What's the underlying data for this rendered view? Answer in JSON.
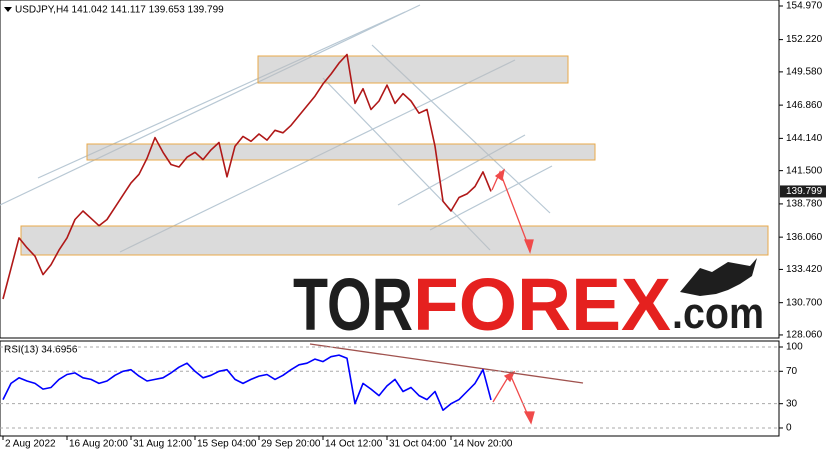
{
  "logo": {
    "tor": "TOR",
    "forex": "FOREX",
    "com": ".com"
  },
  "chart_data": [
    {
      "type": "line",
      "title": "USDJPY,H4  141.042 141.117 139.653 139.799",
      "color": "#b01818",
      "x": [
        0,
        1,
        2,
        3,
        4,
        5,
        6,
        7,
        8,
        9,
        10,
        11,
        12,
        13,
        14,
        15,
        16,
        17,
        18,
        19,
        20,
        21,
        22,
        23,
        24,
        25,
        26,
        27,
        28,
        29,
        30,
        31,
        32,
        33,
        34,
        35,
        36,
        37,
        38,
        39,
        40,
        41,
        42,
        43,
        44,
        45,
        46,
        47,
        48,
        49,
        50,
        51,
        52,
        53,
        54,
        55,
        56,
        57,
        58,
        59,
        60,
        61
      ],
      "values": [
        131.0,
        133.5,
        136.0,
        135.2,
        134.5,
        133.0,
        133.8,
        135.0,
        136.0,
        137.5,
        138.2,
        137.6,
        137.0,
        137.5,
        138.5,
        139.5,
        140.5,
        141.2,
        142.5,
        144.2,
        143.0,
        142.0,
        141.8,
        142.6,
        143.0,
        142.4,
        143.2,
        143.8,
        141.0,
        143.5,
        144.3,
        143.9,
        144.5,
        144.0,
        144.8,
        144.6,
        145.2,
        146.0,
        146.8,
        147.6,
        148.6,
        149.4,
        150.3,
        151.0,
        147.0,
        148.2,
        146.5,
        147.2,
        148.5,
        147.0,
        147.8,
        147.2,
        146.2,
        146.5,
        143.5,
        139.0,
        138.2,
        139.3,
        139.6,
        140.2,
        141.4,
        139.799
      ],
      "current_price": 139.799,
      "xlim": [
        -0.375,
        97
      ],
      "ylim": [
        127.81,
        155.46
      ],
      "yticks": [
        {
          "value": 154.97,
          "label": "154.970"
        },
        {
          "value": 152.22,
          "label": "152.220"
        },
        {
          "value": 149.58,
          "label": "149.580"
        },
        {
          "value": 146.86,
          "label": "146.860"
        },
        {
          "value": 144.14,
          "label": "144.140"
        },
        {
          "value": 141.5,
          "label": "141.500"
        },
        {
          "value": 138.78,
          "label": "138.780"
        },
        {
          "value": 136.06,
          "label": "136.060"
        },
        {
          "value": 133.42,
          "label": "133.420"
        },
        {
          "value": 130.7,
          "label": "130.700"
        },
        {
          "value": 128.06,
          "label": "128.060"
        }
      ],
      "grid": false
    },
    {
      "type": "line",
      "title": "RSI(13) 34.6956",
      "color": "#0000ff",
      "x": [
        0,
        1,
        2,
        3,
        4,
        5,
        6,
        7,
        8,
        9,
        10,
        11,
        12,
        13,
        14,
        15,
        16,
        17,
        18,
        19,
        20,
        21,
        22,
        23,
        24,
        25,
        26,
        27,
        28,
        29,
        30,
        31,
        32,
        33,
        34,
        35,
        36,
        37,
        38,
        39,
        40,
        41,
        42,
        43,
        44,
        45,
        46,
        47,
        48,
        49,
        50,
        51,
        52,
        53,
        54,
        55,
        56,
        57,
        58,
        59,
        60,
        61
      ],
      "values": [
        35,
        55,
        62,
        58,
        55,
        48,
        50,
        60,
        66,
        68,
        62,
        60,
        55,
        58,
        65,
        70,
        72,
        64,
        58,
        60,
        62,
        68,
        75,
        80,
        70,
        62,
        65,
        70,
        72,
        60,
        55,
        60,
        64,
        66,
        60,
        65,
        72,
        78,
        80,
        85,
        82,
        88,
        90,
        86,
        30,
        55,
        48,
        40,
        52,
        60,
        45,
        50,
        40,
        35,
        45,
        22,
        30,
        35,
        45,
        55,
        72,
        34.6956
      ],
      "xlim": [
        -0.375,
        97
      ],
      "ylim": [
        -9.9,
        107.4
      ],
      "yticks": [
        100,
        70,
        30,
        0
      ],
      "xticks": [
        {
          "value": 0,
          "label": "2 Aug 2022"
        },
        {
          "value": 8,
          "label": "16 Aug 20:00"
        },
        {
          "value": 16,
          "label": "31 Aug 12:00"
        },
        {
          "value": 24,
          "label": "15 Sep 04:00"
        },
        {
          "value": 32,
          "label": "29 Sep 20:00"
        },
        {
          "value": 40,
          "label": "14 Oct 12:00"
        },
        {
          "value": 48,
          "label": "31 Oct 04:00"
        },
        {
          "value": 56,
          "label": "14 Nov 20:00"
        }
      ],
      "grid": true
    }
  ]
}
